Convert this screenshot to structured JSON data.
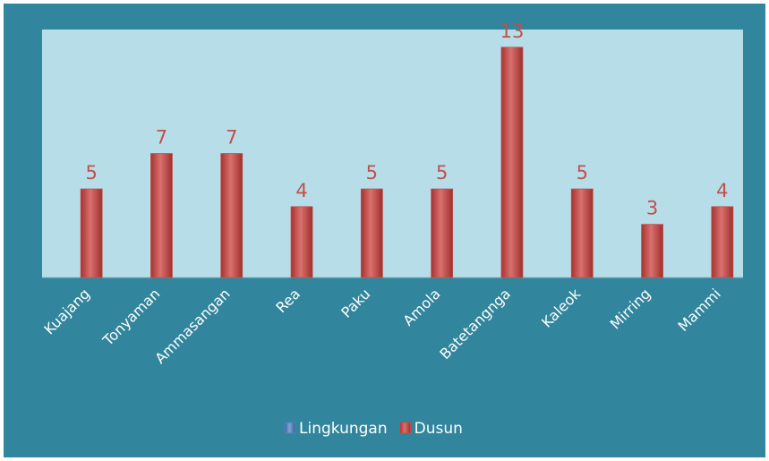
{
  "chart_data": {
    "type": "bar",
    "categories": [
      "Kuajang",
      "Tonyaman",
      "Ammasangan",
      "Rea",
      "Paku",
      "Amola",
      "Batetangnga",
      "Kaleok",
      "Mirring",
      "Mammi"
    ],
    "series": [
      {
        "name": "Lingkungan",
        "color": "#4f81bd",
        "values": [
          null,
          null,
          null,
          null,
          null,
          null,
          null,
          null,
          null,
          null
        ]
      },
      {
        "name": "Dusun",
        "color": "#c0504d",
        "values": [
          5,
          7,
          7,
          4,
          5,
          5,
          13,
          5,
          3,
          4
        ]
      }
    ],
    "ylim": [
      0,
      14
    ],
    "legend": "bottom"
  }
}
